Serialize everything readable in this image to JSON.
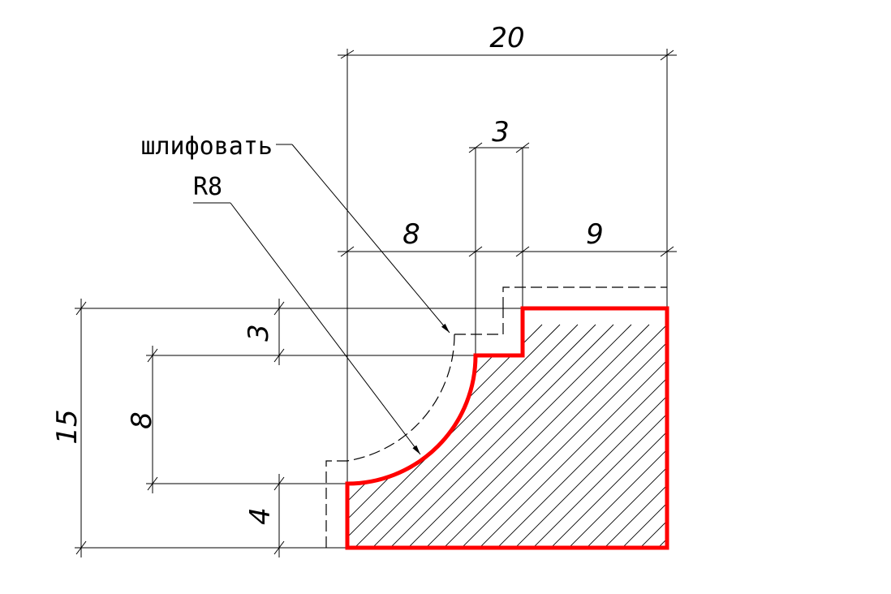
{
  "diagram": {
    "dimensions": {
      "overall_width": "20",
      "slot_width": "3",
      "left_width": "8",
      "right_width": "9",
      "step_height": "3",
      "radius_height": "8",
      "base_height": "4",
      "overall_height": "15"
    },
    "notes": {
      "grinding": "шлифовать",
      "radius": "R8"
    },
    "colors": {
      "contour": "#ff0000",
      "lines": "#000000",
      "background": "#ffffff"
    }
  }
}
